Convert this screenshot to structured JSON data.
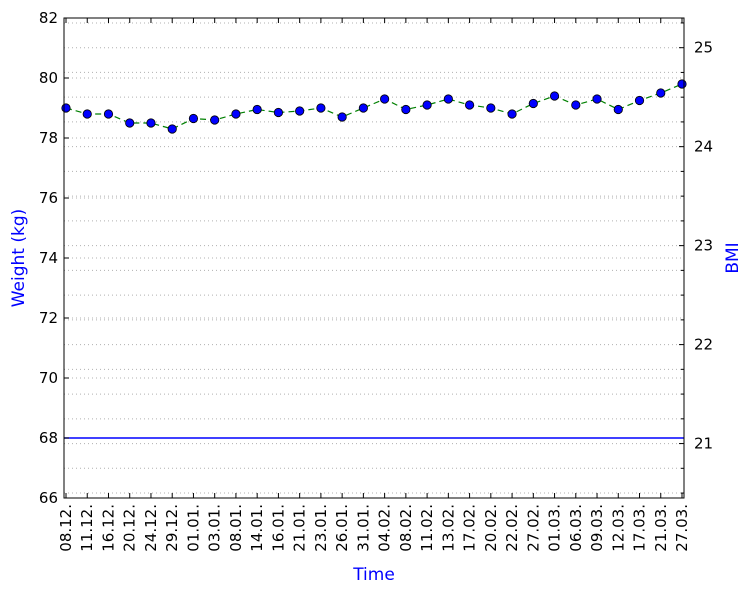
{
  "chart_data": {
    "type": "line",
    "xlabel": "Time",
    "ylabel": "Weight (kg)",
    "ylabel_right": "BMI",
    "ylim": [
      66,
      82
    ],
    "ylim_right": [
      20.45,
      25.3
    ],
    "yticks": [
      "66",
      "68",
      "70",
      "72",
      "74",
      "76",
      "78",
      "80",
      "82"
    ],
    "yticks_right": [
      "21",
      "22",
      "23",
      "24",
      "25"
    ],
    "grid": "horizontal dotted",
    "reference_line": 68,
    "x_tick_labels": [
      "08.12.",
      "11.12.",
      "16.12.",
      "20.12.",
      "24.12.",
      "29.12.",
      "01.01.",
      "03.01.",
      "08.01.",
      "14.01.",
      "16.01.",
      "21.01.",
      "23.01.",
      "26.01.",
      "31.01.",
      "04.02.",
      "08.02.",
      "11.02.",
      "13.02.",
      "17.02.",
      "20.02.",
      "22.02.",
      "27.02.",
      "01.03.",
      "06.03.",
      "09.03.",
      "12.03.",
      "17.03.",
      "21.03.",
      "27.03."
    ],
    "series": [
      {
        "values": [
          79.0,
          78.8,
          78.8,
          78.5,
          78.5,
          78.3,
          78.65,
          78.6,
          78.8,
          78.95,
          78.85,
          78.9,
          79.0,
          78.7,
          79.0,
          79.3,
          78.95,
          79.1,
          79.3,
          79.1,
          79.0,
          78.8,
          79.15,
          79.4,
          79.1,
          79.3,
          78.95,
          79.25,
          79.5,
          79.8
        ]
      }
    ],
    "colors": {
      "axis_titles": "#0000ff",
      "line": "#008000",
      "markers": "#0000ff",
      "reference_line": "#0000ff",
      "grid": "#b0b0b0"
    }
  }
}
